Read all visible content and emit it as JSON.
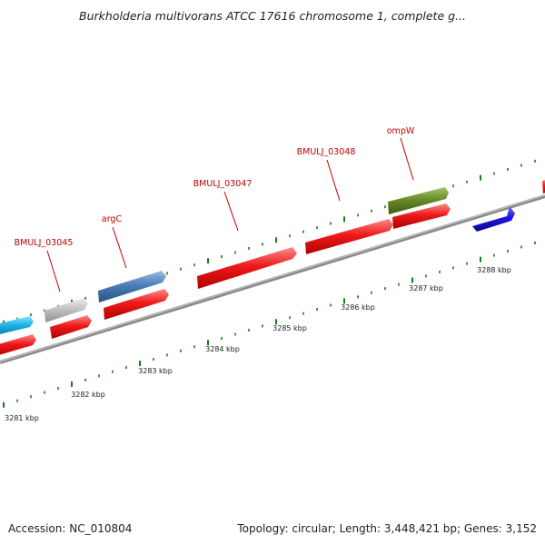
{
  "title": "Burkholderia multivorans ATCC 17616 chromosome 1, complete g...",
  "footer": {
    "accession": "Accession: NC_010804",
    "stats": "Topology: circular; Length: 3,448,421 bp; Genes: 3,152"
  },
  "colors": {
    "backbone": "#7a7a7a",
    "tick": "#1a7a1a",
    "label": "#c00000",
    "gene_red": "#e81010",
    "gene_blue": "#2a1ee0",
    "gene_cyan": "#20b8e8",
    "gene_steel": "#4a7eb8",
    "gene_gray": "#c0c0c0",
    "gene_olive": "#6a8c2a"
  },
  "ruler_kbp": [
    3281,
    3282,
    3283,
    3284,
    3285,
    3286,
    3287,
    3288
  ],
  "ruler_labels": [
    "3281 kbp",
    "3282 kbp",
    "3283 kbp",
    "3284 kbp",
    "3285 kbp",
    "3286 kbp",
    "3287 kbp",
    "3288 kbp"
  ],
  "gene_labels": [
    "BMULJ_03045",
    "argC",
    "BMULJ_03047",
    "BMULJ_03048",
    "ompW"
  ]
}
